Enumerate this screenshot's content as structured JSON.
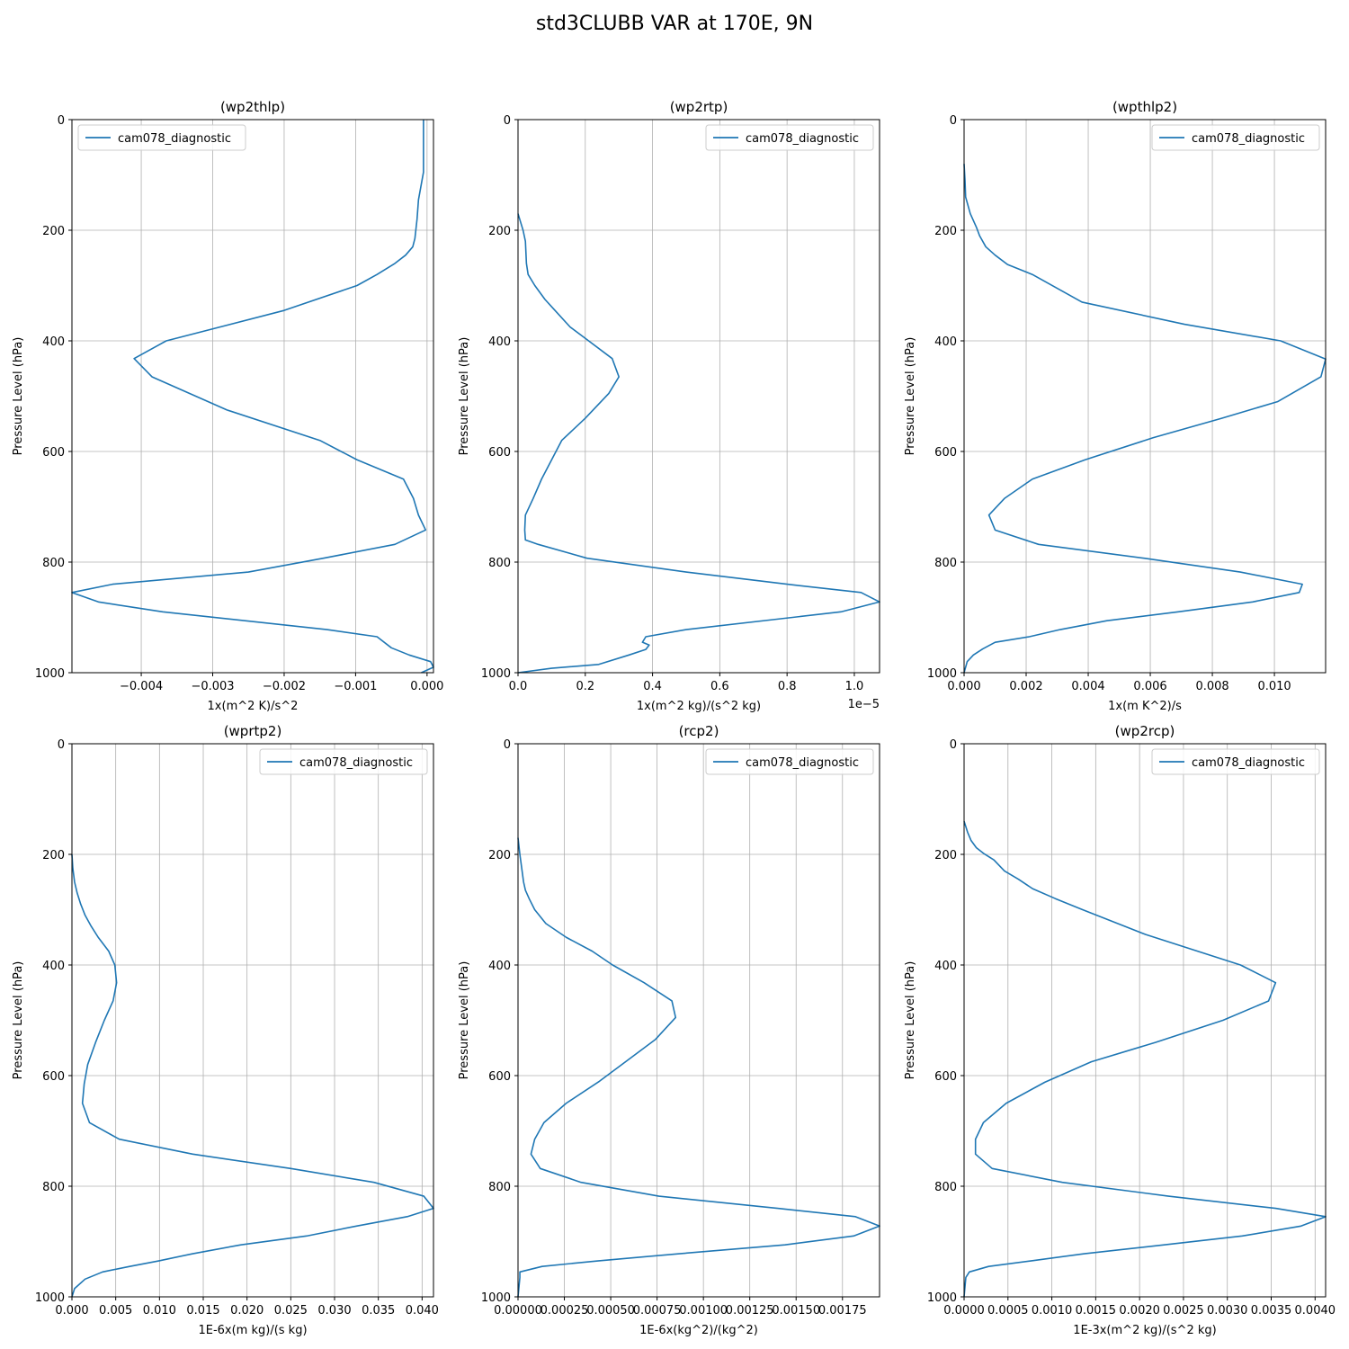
{
  "figure": {
    "title": "std3CLUBB VAR at 170E, 9N"
  },
  "colors": {
    "line": "#1f77b4",
    "grid": "#b0b0b0",
    "axis": "#000000"
  },
  "chart_data": [
    {
      "type": "line",
      "title": "(wp2thlp)",
      "xlabel": "1x(m^2 K)/s^2",
      "ylabel": "Pressure Level (hPa)",
      "xlim": [
        -0.00497,
        9e-05
      ],
      "ylim": [
        1000,
        0
      ],
      "grid": true,
      "legend": "top-left",
      "xticks": [
        -0.004,
        -0.003,
        -0.002,
        -0.001,
        0.0
      ],
      "xtick_labels": [
        "−0.004",
        "−0.003",
        "−0.002",
        "−0.001",
        "0.000"
      ],
      "yticks": [
        0,
        200,
        400,
        600,
        800,
        1000
      ],
      "series": [
        {
          "name": "cam078_diagnostic",
          "x": [
            -5e-05,
            -5e-05,
            -5e-05,
            -0.00012,
            -0.00014,
            -0.00017,
            -0.0002,
            -0.0003,
            -0.00045,
            -0.0007,
            -0.00098,
            -0.002,
            -0.00365,
            -0.0041,
            -0.00385,
            -0.0028,
            -0.0015,
            -0.00098,
            -0.00033,
            -0.00019,
            -0.00012,
            -2e-05,
            -0.00045,
            -0.00145,
            -0.0025,
            -0.0044,
            -0.00497,
            -0.0046,
            -0.0037,
            -0.0014,
            -0.0007,
            -0.0005,
            -0.00025,
            5e-05,
            9e-05,
            -8e-05
          ],
          "y": [
            0,
            50,
            95,
            145,
            180,
            215,
            230,
            245,
            260,
            280,
            300,
            345,
            400,
            432,
            465,
            525,
            580,
            615,
            650,
            685,
            715,
            742,
            768,
            793,
            818,
            840,
            855,
            872,
            890,
            922,
            935,
            955,
            968,
            980,
            990,
            1000
          ]
        }
      ]
    },
    {
      "type": "line",
      "title": "(wp2rtp)",
      "xlabel": "1x(m^2 kg)/(s^2 kg)",
      "ylabel": "Pressure Level (hPa)",
      "xlim": [
        0,
        1.075e-05
      ],
      "ylim": [
        1000,
        0
      ],
      "grid": true,
      "legend": "top-right",
      "offset_text": "1e−5",
      "xticks": [
        0,
        2e-06,
        4e-06,
        6e-06,
        8e-06,
        1e-05
      ],
      "xtick_labels": [
        "0.0",
        "0.2",
        "0.4",
        "0.6",
        "0.8",
        "1.0"
      ],
      "yticks": [
        0,
        200,
        400,
        600,
        800,
        1000
      ],
      "series": [
        {
          "name": "cam078_diagnostic",
          "x": [
            0,
            1.5e-07,
            2.2e-07,
            2.5e-07,
            3e-07,
            5e-07,
            8e-07,
            1.1e-06,
            1.55e-06,
            2.1e-06,
            2.8e-06,
            3e-06,
            2.7e-06,
            2e-06,
            1.3e-06,
            1e-06,
            7e-07,
            4.5e-07,
            2.2e-07,
            2e-07,
            2.2e-07,
            6e-07,
            2.05e-06,
            5e-06,
            8e-06,
            1.02e-05,
            1.075e-05,
            9.6e-06,
            5e-06,
            3.8e-06,
            3.7e-06,
            3.9e-06,
            3.8e-06,
            3.3e-06,
            2.4e-06,
            1e-06,
            0
          ],
          "y": [
            170,
            200,
            220,
            260,
            280,
            300,
            325,
            345,
            375,
            400,
            432,
            465,
            495,
            540,
            580,
            615,
            650,
            685,
            715,
            742,
            760,
            768,
            793,
            818,
            840,
            855,
            872,
            890,
            922,
            935,
            945,
            950,
            958,
            968,
            985,
            992,
            1000
          ]
        }
      ]
    },
    {
      "type": "line",
      "title": "(wpthlp2)",
      "xlabel": "1x(m K^2)/s",
      "ylabel": "Pressure Level (hPa)",
      "xlim": [
        0,
        0.01165
      ],
      "ylim": [
        1000,
        0
      ],
      "grid": true,
      "legend": "top-right",
      "xticks": [
        0,
        0.002,
        0.004,
        0.006,
        0.008,
        0.01
      ],
      "xtick_labels": [
        "0.000",
        "0.002",
        "0.004",
        "0.006",
        "0.008",
        "0.010"
      ],
      "yticks": [
        0,
        200,
        400,
        600,
        800,
        1000
      ],
      "series": [
        {
          "name": "cam078_diagnostic",
          "x": [
            0,
            3e-05,
            5e-05,
            0.0002,
            0.0004,
            0.0005,
            0.0007,
            0.001,
            0.0014,
            0.0022,
            0.0038,
            0.0071,
            0.0102,
            0.01165,
            0.0115,
            0.0101,
            0.0083,
            0.0061,
            0.0039,
            0.0022,
            0.0013,
            0.0008,
            0.001,
            0.0024,
            0.0058,
            0.0089,
            0.0109,
            0.0108,
            0.0093,
            0.0069,
            0.0046,
            0.0031,
            0.0021,
            0.001,
            0.0006,
            0.0003,
            0.0001,
            0
          ],
          "y": [
            80,
            110,
            140,
            170,
            195,
            210,
            230,
            245,
            262,
            280,
            330,
            370,
            400,
            433,
            465,
            510,
            540,
            575,
            615,
            650,
            685,
            715,
            742,
            768,
            793,
            818,
            840,
            855,
            872,
            890,
            906,
            922,
            935,
            945,
            957,
            968,
            980,
            1000
          ]
        }
      ]
    },
    {
      "type": "line",
      "title": "(wprtp2)",
      "xlabel": "1E-6x(m kg)/(s kg)",
      "ylabel": "Pressure Level (hPa)",
      "xlim": [
        0,
        0.0413
      ],
      "ylim": [
        1000,
        0
      ],
      "grid": true,
      "legend": "top-right",
      "xticks": [
        0,
        0.005,
        0.01,
        0.015,
        0.02,
        0.025,
        0.03,
        0.035,
        0.04
      ],
      "xtick_labels": [
        "0.000",
        "0.005",
        "0.010",
        "0.015",
        "0.020",
        "0.025",
        "0.030",
        "0.035",
        "0.040"
      ],
      "yticks": [
        0,
        200,
        400,
        600,
        800,
        1000
      ],
      "series": [
        {
          "name": "cam078_diagnostic",
          "x": [
            0,
            0.0001,
            0.0003,
            0.0006,
            0.001,
            0.0015,
            0.0022,
            0.003,
            0.0042,
            0.0049,
            0.0051,
            0.0047,
            0.0037,
            0.0027,
            0.0018,
            0.0014,
            0.0012,
            0.002,
            0.0054,
            0.0138,
            0.025,
            0.0345,
            0.0402,
            0.0413,
            0.0383,
            0.0325,
            0.0268,
            0.0193,
            0.0138,
            0.0099,
            0.0066,
            0.0035,
            0.0015,
            0.0003,
            0
          ],
          "y": [
            200,
            225,
            250,
            270,
            290,
            310,
            330,
            350,
            375,
            400,
            432,
            465,
            500,
            540,
            580,
            615,
            650,
            685,
            715,
            742,
            768,
            793,
            818,
            840,
            855,
            872,
            890,
            906,
            922,
            935,
            945,
            955,
            968,
            985,
            1000
          ]
        }
      ]
    },
    {
      "type": "line",
      "title": "(rcp2)",
      "xlabel": "1E-6x(kg^2)/(kg^2)",
      "ylabel": "Pressure Level (hPa)",
      "xlim": [
        0,
        0.00195
      ],
      "ylim": [
        1000,
        0
      ],
      "grid": true,
      "legend": "top-right",
      "xticks": [
        0,
        0.00025,
        0.0005,
        0.00075,
        0.001,
        0.00125,
        0.0015,
        0.00175
      ],
      "xtick_labels": [
        "0.00000",
        "0.00025",
        "0.00050",
        "0.00075",
        "0.00100",
        "0.00125",
        "0.00150",
        "0.00175"
      ],
      "yticks": [
        0,
        200,
        400,
        600,
        800,
        1000
      ],
      "series": [
        {
          "name": "cam078_diagnostic",
          "x": [
            0,
            1e-05,
            2e-05,
            3e-05,
            4e-05,
            6e-05,
            9e-05,
            0.00015,
            0.00026,
            0.0004,
            0.00051,
            0.00068,
            0.00083,
            0.00085,
            0.00074,
            0.00058,
            0.00044,
            0.00026,
            0.00014,
            9e-05,
            7e-05,
            0.00012,
            0.00034,
            0.00076,
            0.0014,
            0.00182,
            0.00195,
            0.00181,
            0.00144,
            0.00087,
            0.00043,
            0.00013,
            1e-05,
            1e-05,
            0
          ],
          "y": [
            170,
            200,
            225,
            250,
            265,
            280,
            300,
            325,
            350,
            375,
            400,
            432,
            465,
            495,
            535,
            575,
            610,
            650,
            685,
            715,
            742,
            768,
            793,
            818,
            840,
            855,
            872,
            890,
            906,
            922,
            935,
            945,
            955,
            965,
            1000
          ]
        }
      ]
    },
    {
      "type": "line",
      "title": "(wp2rcp)",
      "xlabel": "1E-3x(m^2 kg)/(s^2 kg)",
      "ylabel": "Pressure Level (hPa)",
      "xlim": [
        0,
        0.00412
      ],
      "ylim": [
        1000,
        0
      ],
      "grid": true,
      "legend": "top-right",
      "xticks": [
        0,
        0.0005,
        0.001,
        0.0015,
        0.002,
        0.0025,
        0.003,
        0.0035,
        0.004
      ],
      "xtick_labels": [
        "0.0000",
        "0.0005",
        "0.0010",
        "0.0015",
        "0.0020",
        "0.0025",
        "0.0030",
        "0.0035",
        "0.0040"
      ],
      "yticks": [
        0,
        200,
        400,
        600,
        800,
        1000
      ],
      "series": [
        {
          "name": "cam078_diagnostic",
          "x": [
            0,
            4e-05,
            8e-05,
            0.00014,
            0.00022,
            0.00034,
            0.00046,
            0.00062,
            0.00078,
            0.00104,
            0.00135,
            0.00207,
            0.00315,
            0.00355,
            0.00347,
            0.00295,
            0.00218,
            0.00145,
            0.00092,
            0.00048,
            0.00022,
            0.00013,
            0.00013,
            0.00032,
            0.00112,
            0.00233,
            0.00355,
            0.00412,
            0.00384,
            0.00317,
            0.00228,
            0.00137,
            0.00076,
            0.00028,
            6e-05,
            2e-05,
            0
          ],
          "y": [
            140,
            160,
            175,
            188,
            198,
            210,
            230,
            245,
            262,
            280,
            300,
            345,
            400,
            432,
            465,
            500,
            540,
            575,
            612,
            650,
            685,
            715,
            742,
            768,
            793,
            818,
            840,
            855,
            872,
            890,
            906,
            922,
            935,
            945,
            955,
            965,
            1000
          ]
        }
      ]
    }
  ]
}
